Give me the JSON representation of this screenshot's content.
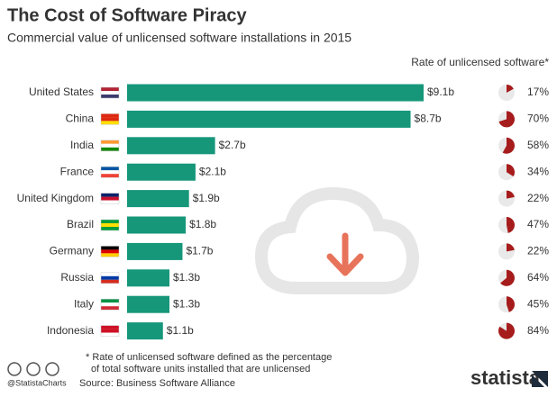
{
  "chart_data": {
    "type": "bar",
    "title": "The Cost of Software Piracy",
    "subtitle": "Commercial value of unlicensed software installations in 2015",
    "categories": [
      "United States",
      "China",
      "India",
      "France",
      "United Kingdom",
      "Brazil",
      "Germany",
      "Russia",
      "Italy",
      "Indonesia"
    ],
    "values": [
      9.1,
      8.7,
      2.7,
      2.1,
      1.9,
      1.8,
      1.7,
      1.3,
      1.3,
      1.1
    ],
    "value_labels": [
      "$9.1b",
      "$8.7b",
      "$2.7b",
      "$2.1b",
      "$1.9b",
      "$1.8b",
      "$1.7b",
      "$1.3b",
      "$1.3b",
      "$1.1b"
    ],
    "color": "#16977a",
    "rate": {
      "title": "Rate of unlicensed software*",
      "values": [
        17,
        70,
        58,
        34,
        22,
        47,
        22,
        64,
        45,
        84
      ],
      "value_labels": [
        "17%",
        "70%",
        "58%",
        "34%",
        "22%",
        "47%",
        "22%",
        "64%",
        "45%",
        "84%"
      ],
      "color": "#a61c1c"
    },
    "footnote": [
      "* Rate of unlicensed software defined as the percentage",
      "of total software units installed that are unlicensed"
    ],
    "credit": "@StatistaCharts",
    "source": "Source: Business Software Alliance",
    "brand": "statista"
  }
}
